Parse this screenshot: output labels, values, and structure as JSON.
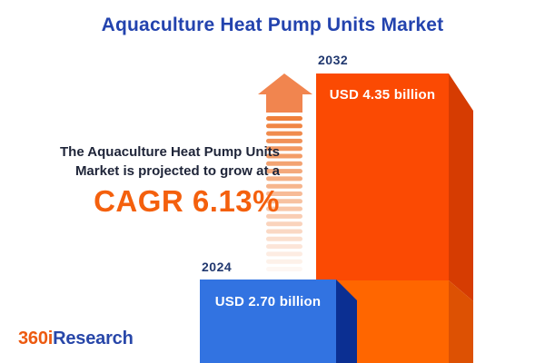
{
  "title": {
    "text": "Aquaculture Heat Pump Units Market",
    "color": "#2343AE"
  },
  "description": {
    "line1": "The Aquaculture Heat Pump Units",
    "line2": "Market is projected to grow at a",
    "cagr_text": "CAGR 6.13%",
    "text_color": "#1E2438",
    "cagr_color": "#F4600D"
  },
  "chart_data": {
    "type": "bar",
    "title": "Aquaculture Heat Pump Units Market",
    "categories": [
      "2024",
      "2032"
    ],
    "values": [
      2.7,
      4.35
    ],
    "unit": "USD billion",
    "value_labels": [
      "USD 2.70 billion",
      "USD 4.35 billion"
    ],
    "cagr_percent": 6.13,
    "legend": "none",
    "grid": "off",
    "bar_colors": [
      "#3273E1",
      "#FB4A03"
    ]
  },
  "bars": {
    "b2024": {
      "year": "2024",
      "label": "USD 2.70 billion",
      "front": "#3273E1",
      "side": "#0B2F92"
    },
    "b2032": {
      "year": "2032",
      "label": "USD 4.35 billion",
      "front_top": "#FB4A03",
      "side_top": "#D63C02",
      "front_bottom": "#FF6600",
      "side_bottom": "#DD5103"
    }
  },
  "arrow": {
    "head_color": "#F1854F",
    "stripe_color": "#EF7F3B",
    "stripe_count": 21
  },
  "year_label_color": "#21386F",
  "logo": {
    "prefix": "360i",
    "suffix": "Research",
    "prefix_color": "#ED5A10",
    "suffix_color": "#2847A9"
  }
}
